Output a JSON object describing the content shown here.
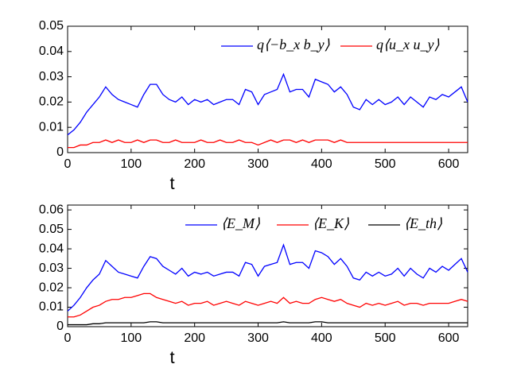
{
  "chart_data": [
    {
      "type": "line",
      "xlabel": "t",
      "x": [
        0,
        10,
        20,
        30,
        40,
        50,
        60,
        70,
        80,
        90,
        100,
        110,
        120,
        130,
        140,
        150,
        160,
        170,
        180,
        190,
        200,
        210,
        220,
        230,
        240,
        250,
        260,
        270,
        280,
        290,
        300,
        310,
        320,
        330,
        340,
        350,
        360,
        370,
        380,
        390,
        400,
        410,
        420,
        430,
        440,
        450,
        460,
        470,
        480,
        490,
        500,
        510,
        520,
        530,
        540,
        550,
        560,
        570,
        580,
        590,
        600,
        610,
        620,
        630
      ],
      "xlim": [
        0,
        630
      ],
      "xticks": [
        0,
        100,
        200,
        300,
        400,
        500,
        600
      ],
      "ylim": [
        0,
        0.05
      ],
      "yticks": [
        0,
        0.01,
        0.02,
        0.03,
        0.04,
        0.05
      ],
      "legend": "upper right",
      "series": [
        {
          "name": "q⟨−b_x b_y⟩",
          "color": "#0000ff",
          "values": [
            0.007,
            0.009,
            0.012,
            0.016,
            0.019,
            0.022,
            0.026,
            0.023,
            0.021,
            0.02,
            0.019,
            0.018,
            0.023,
            0.027,
            0.027,
            0.023,
            0.021,
            0.02,
            0.022,
            0.019,
            0.021,
            0.02,
            0.021,
            0.019,
            0.02,
            0.021,
            0.021,
            0.019,
            0.025,
            0.024,
            0.019,
            0.023,
            0.024,
            0.025,
            0.031,
            0.024,
            0.025,
            0.025,
            0.022,
            0.029,
            0.028,
            0.027,
            0.024,
            0.026,
            0.023,
            0.018,
            0.017,
            0.021,
            0.019,
            0.021,
            0.019,
            0.02,
            0.022,
            0.019,
            0.022,
            0.02,
            0.018,
            0.022,
            0.021,
            0.023,
            0.022,
            0.024,
            0.026,
            0.02
          ]
        },
        {
          "name": "q⟨u_x u_y⟩",
          "color": "#ff0000",
          "values": [
            0.002,
            0.002,
            0.003,
            0.003,
            0.004,
            0.004,
            0.005,
            0.004,
            0.005,
            0.004,
            0.004,
            0.005,
            0.004,
            0.005,
            0.005,
            0.004,
            0.004,
            0.005,
            0.004,
            0.004,
            0.004,
            0.005,
            0.004,
            0.004,
            0.005,
            0.004,
            0.004,
            0.005,
            0.004,
            0.004,
            0.003,
            0.004,
            0.005,
            0.004,
            0.005,
            0.005,
            0.004,
            0.005,
            0.004,
            0.005,
            0.005,
            0.005,
            0.004,
            0.005,
            0.004,
            0.004,
            0.004,
            0.004,
            0.004,
            0.004,
            0.004,
            0.004,
            0.004,
            0.004,
            0.004,
            0.004,
            0.004,
            0.004,
            0.004,
            0.004,
            0.004,
            0.004,
            0.004,
            0.004
          ]
        }
      ]
    },
    {
      "type": "line",
      "xlabel": "t",
      "x": [
        0,
        10,
        20,
        30,
        40,
        50,
        60,
        70,
        80,
        90,
        100,
        110,
        120,
        130,
        140,
        150,
        160,
        170,
        180,
        190,
        200,
        210,
        220,
        230,
        240,
        250,
        260,
        270,
        280,
        290,
        300,
        310,
        320,
        330,
        340,
        350,
        360,
        370,
        380,
        390,
        400,
        410,
        420,
        430,
        440,
        450,
        460,
        470,
        480,
        490,
        500,
        510,
        520,
        530,
        540,
        550,
        560,
        570,
        580,
        590,
        600,
        610,
        620,
        630
      ],
      "xlim": [
        0,
        630
      ],
      "xticks": [
        0,
        100,
        200,
        300,
        400,
        500,
        600
      ],
      "ylim": [
        0,
        0.0625
      ],
      "yticks": [
        0,
        0.01,
        0.02,
        0.03,
        0.04,
        0.05,
        0.06
      ],
      "legend": "upper right",
      "series": [
        {
          "name": "⟨E_M⟩",
          "color": "#0000ff",
          "values": [
            0.008,
            0.011,
            0.015,
            0.02,
            0.024,
            0.027,
            0.034,
            0.031,
            0.028,
            0.027,
            0.026,
            0.025,
            0.031,
            0.036,
            0.035,
            0.031,
            0.029,
            0.027,
            0.03,
            0.026,
            0.028,
            0.027,
            0.028,
            0.026,
            0.027,
            0.028,
            0.028,
            0.026,
            0.033,
            0.032,
            0.026,
            0.031,
            0.032,
            0.033,
            0.042,
            0.032,
            0.033,
            0.033,
            0.03,
            0.039,
            0.038,
            0.036,
            0.032,
            0.035,
            0.031,
            0.025,
            0.024,
            0.028,
            0.026,
            0.028,
            0.026,
            0.027,
            0.03,
            0.026,
            0.03,
            0.027,
            0.025,
            0.03,
            0.028,
            0.031,
            0.029,
            0.032,
            0.035,
            0.028
          ]
        },
        {
          "name": "⟨E_K⟩",
          "color": "#ff0000",
          "values": [
            0.005,
            0.005,
            0.006,
            0.008,
            0.01,
            0.011,
            0.013,
            0.014,
            0.014,
            0.015,
            0.015,
            0.016,
            0.017,
            0.017,
            0.015,
            0.014,
            0.013,
            0.012,
            0.013,
            0.011,
            0.012,
            0.012,
            0.013,
            0.011,
            0.012,
            0.013,
            0.012,
            0.011,
            0.013,
            0.012,
            0.011,
            0.012,
            0.013,
            0.012,
            0.015,
            0.012,
            0.013,
            0.012,
            0.012,
            0.014,
            0.015,
            0.014,
            0.013,
            0.014,
            0.012,
            0.011,
            0.01,
            0.012,
            0.011,
            0.012,
            0.011,
            0.012,
            0.013,
            0.011,
            0.012,
            0.012,
            0.011,
            0.012,
            0.012,
            0.012,
            0.012,
            0.013,
            0.014,
            0.013
          ]
        },
        {
          "name": "⟨E_th⟩",
          "color": "#000000",
          "values": [
            0.001,
            0.001,
            0.001,
            0.001,
            0.0015,
            0.0015,
            0.002,
            0.002,
            0.002,
            0.002,
            0.002,
            0.002,
            0.002,
            0.0025,
            0.0025,
            0.002,
            0.002,
            0.002,
            0.002,
            0.002,
            0.002,
            0.002,
            0.002,
            0.002,
            0.002,
            0.002,
            0.002,
            0.002,
            0.002,
            0.002,
            0.002,
            0.002,
            0.002,
            0.002,
            0.0025,
            0.002,
            0.002,
            0.002,
            0.002,
            0.0025,
            0.0025,
            0.002,
            0.002,
            0.002,
            0.002,
            0.002,
            0.002,
            0.002,
            0.002,
            0.002,
            0.002,
            0.002,
            0.002,
            0.002,
            0.002,
            0.002,
            0.002,
            0.002,
            0.002,
            0.002,
            0.002,
            0.002,
            0.002,
            0.002
          ]
        }
      ]
    }
  ]
}
